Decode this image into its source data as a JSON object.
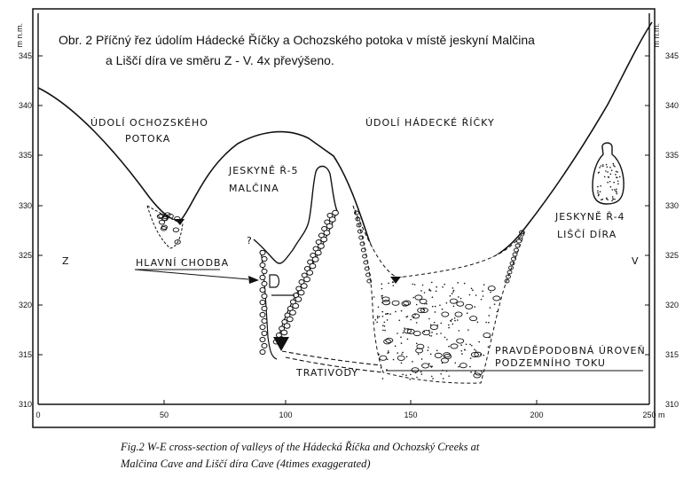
{
  "figure": {
    "title_line1": "Obr. 2    Příčný řez údolím Hádecké Říčky a Ochozského potoka v místě jeskyní Malčina",
    "title_line2": "a Liščí díra ve směru Z - V. 4x převýšeno.",
    "caption_line1": "Fig.2 W-E cross-section of valleys of the Hádecká Říčka and Ochozský Creeks at",
    "caption_line2": "Malčina Cave and Liščí díra Cave (4times exaggerated)",
    "y_unit_left": "m n.m.",
    "y_unit_right": "m n.m.",
    "x_unit": "250 m"
  },
  "axes": {
    "y_ticks": [
      "345",
      "340",
      "335",
      "330",
      "325",
      "320",
      "315",
      "310"
    ],
    "x_ticks": [
      "0",
      "50",
      "100",
      "150",
      "200"
    ]
  },
  "labels": {
    "ochoz_line1": "ÚDOLÍ  OCHOZSKÉHO",
    "ochoz_line2": "POTOKA",
    "hadecka": "ÚDOLÍ  HÁDECKÉ  ŘÍČKY",
    "r5_line1": "JESKYNĚ  Ř-5",
    "r5_line2": "MALČINA",
    "r4_line1": "JESKYNĚ  Ř-4",
    "r4_line2": "LIŠČÍ  DÍRA",
    "west": "Z",
    "east": "V",
    "hlavni": "HLAVNÍ  CHODBA",
    "trativody": "TRATIVODY",
    "uroven_line1": "PRAVDĚPODOBNÁ  ÚROVEŇ",
    "uroven_line2": "PODZEMNÍHO  TOKU",
    "question": "?"
  }
}
